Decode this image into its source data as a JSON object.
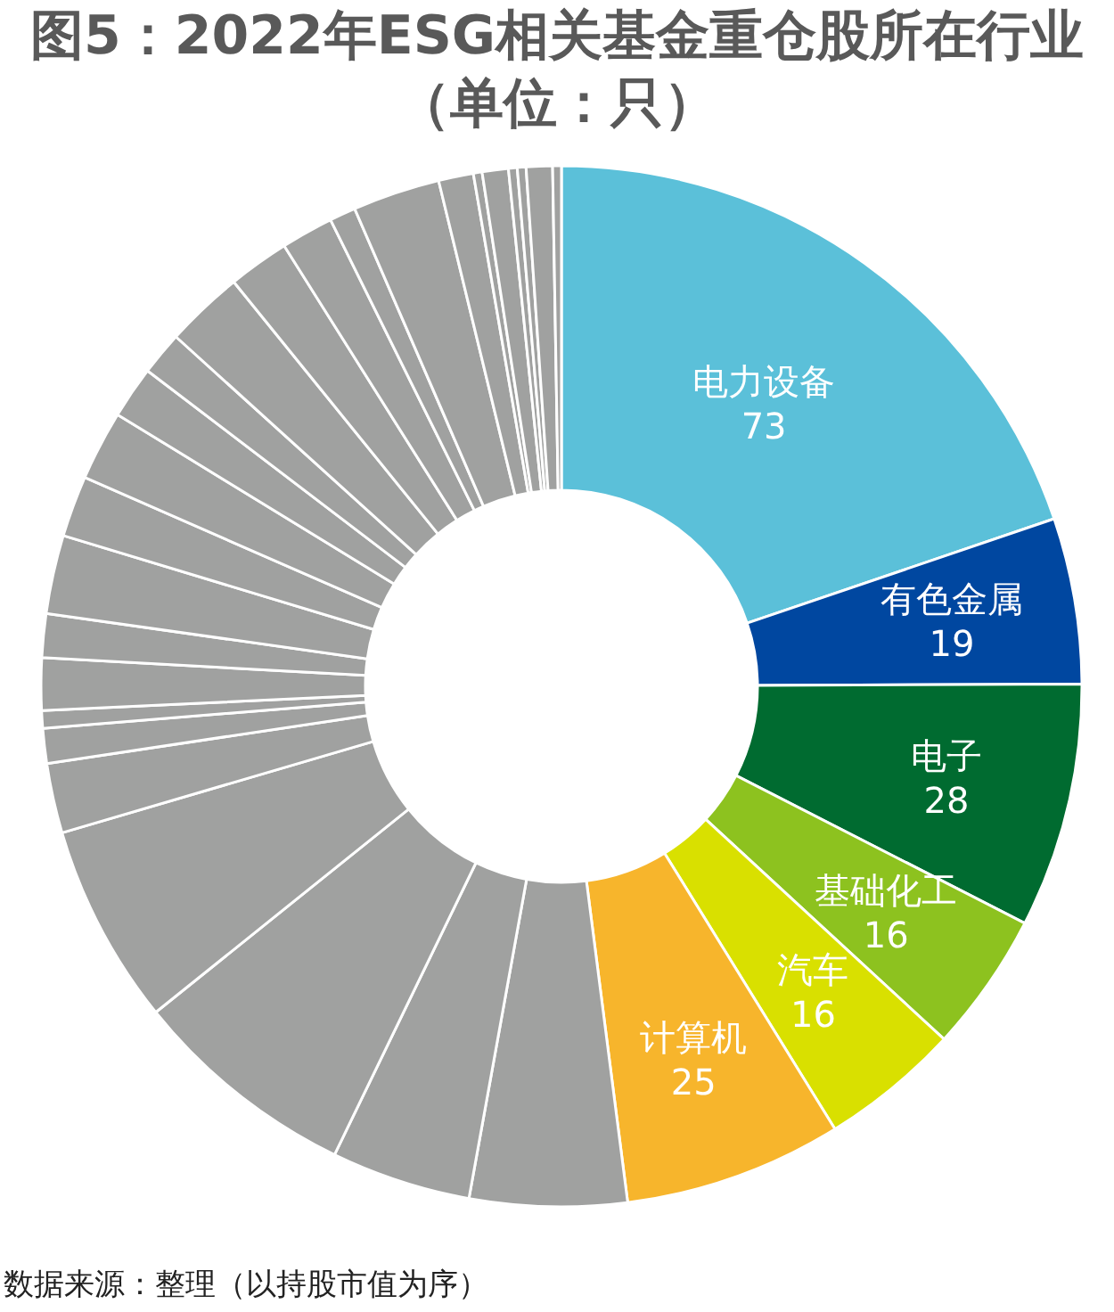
{
  "chart_data": {
    "type": "donut",
    "title": "图5：2022年ESG相关基金重仓股所在行业（单位：只）",
    "categories": [
      "电力设备",
      "有色金属",
      "电子",
      "基础化工",
      "汽车",
      "计算机",
      null,
      null,
      null,
      null,
      null,
      null,
      null,
      null,
      null,
      null,
      null,
      null,
      null,
      null,
      null,
      null,
      null,
      null,
      null,
      null,
      null,
      null,
      null,
      null,
      null,
      null
    ],
    "values": [
      73,
      19,
      28,
      16,
      16,
      25,
      18,
      16,
      26,
      23,
      8,
      4,
      2,
      6,
      5,
      9,
      7,
      8,
      6,
      5,
      9,
      7,
      6,
      3,
      10,
      4,
      1,
      3,
      1,
      1,
      3,
      1
    ],
    "colors": [
      "#5bc0d9",
      "#0047a0",
      "#006b30",
      "#8dc21f",
      "#d9e000",
      "#f7b52c",
      "#a0a1a0",
      "#a0a1a0",
      "#a0a1a0",
      "#a0a1a0",
      "#a0a1a0",
      "#a0a1a0",
      "#a0a1a0",
      "#a0a1a0",
      "#a0a1a0",
      "#a0a1a0",
      "#a0a1a0",
      "#a0a1a0",
      "#a0a1a0",
      "#a0a1a0",
      "#a0a1a0",
      "#a0a1a0",
      "#a0a1a0",
      "#a0a1a0",
      "#a0a1a0",
      "#a0a1a0",
      "#a0a1a0",
      "#a0a1a0",
      "#a0a1a0",
      "#a0a1a0",
      "#a0a1a0",
      "#a0a1a0"
    ],
    "value_labels": [
      "73",
      "19",
      "28",
      "16",
      "16",
      "25",
      null,
      null,
      null,
      null,
      null,
      null,
      null,
      null,
      null,
      null,
      null,
      null,
      null,
      null,
      null,
      null,
      null,
      null,
      null,
      null,
      null,
      null,
      null,
      null,
      null,
      null
    ],
    "annotations": [
      "数据来源：整理（以持股市值为序）"
    ]
  }
}
